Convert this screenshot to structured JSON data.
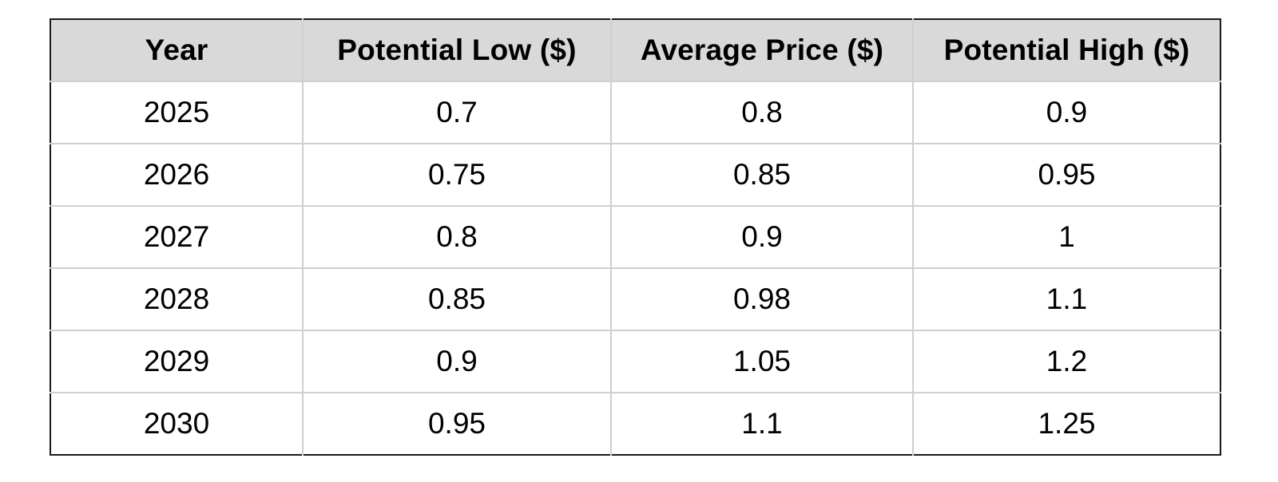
{
  "table": {
    "headers": [
      "Year",
      "Potential Low ($)",
      "Average Price ($)",
      "Potential High ($)"
    ],
    "rows": [
      [
        "2025",
        "0.7",
        "0.8",
        "0.9"
      ],
      [
        "2026",
        "0.75",
        "0.85",
        "0.95"
      ],
      [
        "2027",
        "0.8",
        "0.9",
        "1"
      ],
      [
        "2028",
        "0.85",
        "0.98",
        "1.1"
      ],
      [
        "2029",
        "0.9",
        "1.05",
        "1.2"
      ],
      [
        "2030",
        "0.95",
        "1.1",
        "1.25"
      ]
    ]
  }
}
